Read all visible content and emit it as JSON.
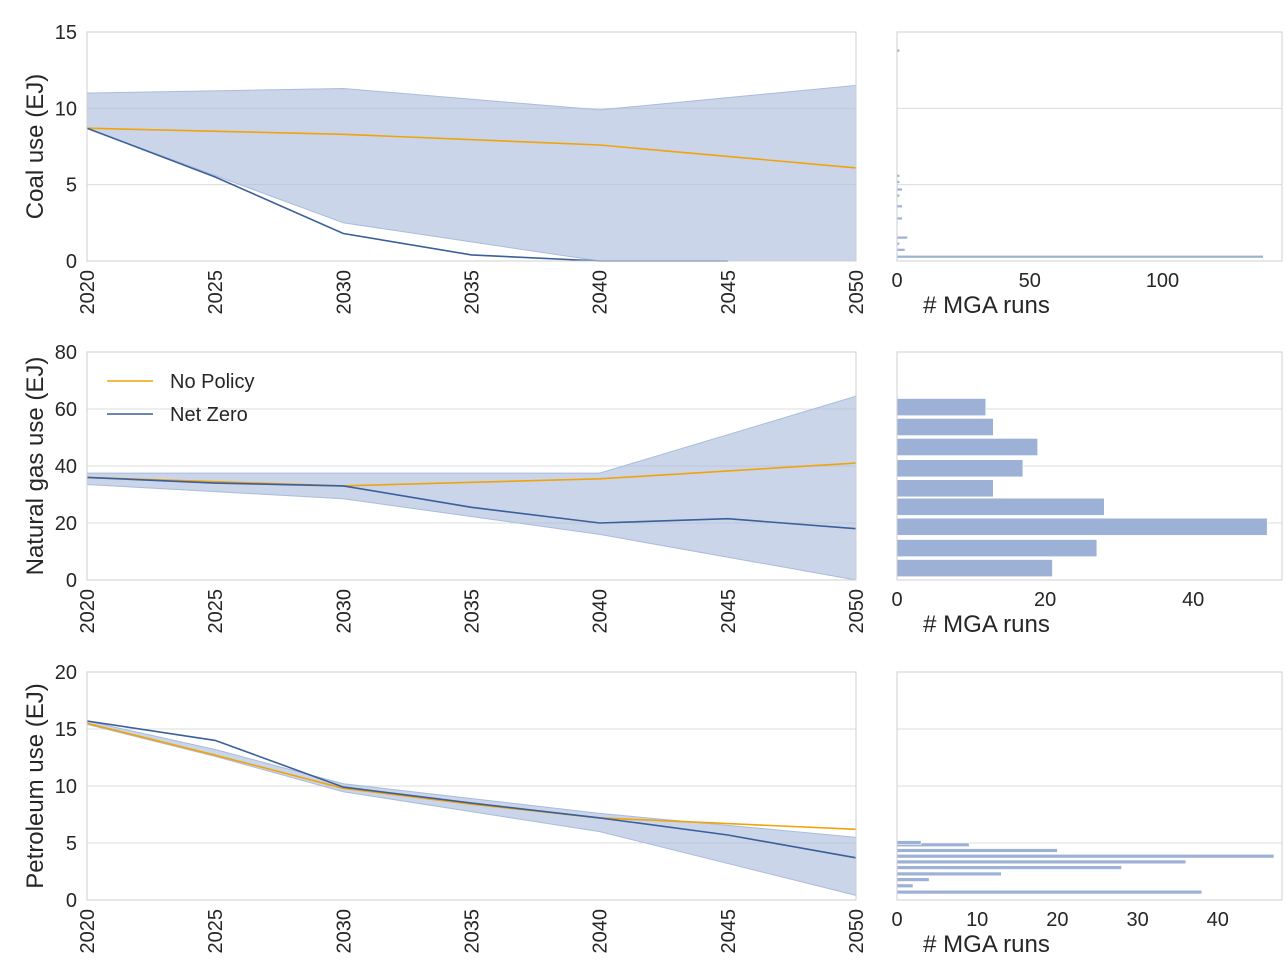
{
  "legend": {
    "placement": "upper-left of natural gas panel",
    "entries": [
      {
        "label": "No Policy",
        "color": "#f0a30a"
      },
      {
        "label": "Net Zero",
        "color": "#3a5f9a"
      }
    ]
  },
  "colors": {
    "no_policy": "#f0a30a",
    "net_zero": "#3a5f9a",
    "band": "#a9bcdb",
    "hist": "#9db1d6",
    "grid": "#dcdcdc",
    "frame": "#cfcfcf"
  },
  "chart_data": [
    {
      "type": "line",
      "id": "coal-lines",
      "ylabel": "Coal use (EJ)",
      "xlabel": "",
      "xlim": [
        2020,
        2050
      ],
      "ylim": [
        0,
        15
      ],
      "xticks": [
        "2020",
        "2025",
        "2030",
        "2035",
        "2040",
        "2045",
        "2050"
      ],
      "yticks": [
        "0",
        "5",
        "10",
        "15"
      ],
      "grid": true,
      "band": {
        "x": [
          2020,
          2030,
          2040,
          2050
        ],
        "upper": [
          11.0,
          11.3,
          9.9,
          11.5
        ],
        "lower": [
          8.7,
          2.5,
          0.0,
          0.0
        ]
      },
      "series": [
        {
          "name": "No Policy",
          "x": [
            2020,
            2030,
            2040,
            2050
          ],
          "y": [
            8.7,
            8.3,
            7.6,
            6.1
          ]
        },
        {
          "name": "Net Zero",
          "x": [
            2020,
            2025,
            2030,
            2035,
            2040,
            2045
          ],
          "y": [
            8.7,
            5.5,
            1.8,
            0.4,
            0.0,
            0.0
          ]
        }
      ]
    },
    {
      "type": "bar",
      "id": "coal-hist",
      "orientation": "horizontal",
      "xlabel": "# MGA runs",
      "ylabel": "",
      "xlim": [
        0,
        145
      ],
      "ylim": [
        0,
        15
      ],
      "xticks": [
        0,
        50,
        100
      ],
      "xtick_labels": [
        "0",
        "50",
        "100"
      ],
      "bin_centers": [
        13.75,
        5.55,
        5.15,
        4.65,
        4.25,
        3.55,
        2.75,
        1.5,
        1.1,
        0.7,
        0.25
      ],
      "bin_height": 0.25,
      "values": [
        1,
        1,
        1,
        2,
        1,
        2,
        2,
        4,
        1,
        3,
        138
      ]
    },
    {
      "type": "line",
      "id": "gas-lines",
      "ylabel": "Natural gas use (EJ)",
      "xlabel": "",
      "xlim": [
        2020,
        2050
      ],
      "ylim": [
        0,
        80
      ],
      "xticks": [
        "2020",
        "2025",
        "2030",
        "2035",
        "2040",
        "2045",
        "2050"
      ],
      "yticks": [
        "0",
        "20",
        "40",
        "60",
        "80"
      ],
      "grid": true,
      "band": {
        "x": [
          2020,
          2025,
          2030,
          2040,
          2050
        ],
        "upper": [
          37.5,
          37.5,
          37.5,
          37.5,
          64.5
        ],
        "lower": [
          33.5,
          31.0,
          28.5,
          16.0,
          0.0
        ]
      },
      "series": [
        {
          "name": "No Policy",
          "x": [
            2020,
            2025,
            2030,
            2040,
            2050
          ],
          "y": [
            36.0,
            34.5,
            33.0,
            35.5,
            41.0
          ]
        },
        {
          "name": "Net Zero",
          "x": [
            2020,
            2025,
            2030,
            2035,
            2040,
            2045,
            2050
          ],
          "y": [
            36.0,
            34.0,
            33.0,
            25.5,
            20.0,
            21.5,
            18.0
          ]
        }
      ]
    },
    {
      "type": "bar",
      "id": "gas-hist",
      "orientation": "horizontal",
      "xlabel": "# MGA runs",
      "ylabel": "",
      "xlim": [
        0,
        52
      ],
      "ylim": [
        0,
        80
      ],
      "xticks": [
        0,
        20,
        40
      ],
      "xtick_labels": [
        "0",
        "20",
        "40"
      ],
      "bin_centers": [
        4,
        11,
        18.5,
        25.5,
        32,
        39,
        46.5,
        53.5,
        60.5
      ],
      "bin_height": 6.4,
      "values": [
        21,
        27,
        50,
        28,
        13,
        17,
        19,
        13,
        12
      ]
    },
    {
      "type": "line",
      "id": "petroleum-lines",
      "ylabel": "Petroleum use (EJ)",
      "xlabel": "",
      "xlim": [
        2020,
        2050
      ],
      "ylim": [
        0,
        20
      ],
      "xticks": [
        "2020",
        "2025",
        "2030",
        "2035",
        "2040",
        "2045",
        "2050"
      ],
      "yticks": [
        "0",
        "5",
        "10",
        "15",
        "20"
      ],
      "grid": true,
      "band": {
        "x": [
          2020,
          2025,
          2030,
          2040,
          2050
        ],
        "upper": [
          15.7,
          13.2,
          10.2,
          7.6,
          5.5
        ],
        "lower": [
          15.4,
          12.6,
          9.5,
          6.0,
          0.4
        ]
      },
      "series": [
        {
          "name": "No Policy",
          "x": [
            2020,
            2025,
            2030,
            2035,
            2040,
            2045,
            2050
          ],
          "y": [
            15.5,
            12.7,
            9.8,
            8.4,
            7.2,
            6.7,
            6.2
          ]
        },
        {
          "name": "Net Zero",
          "x": [
            2020,
            2025,
            2030,
            2035,
            2040,
            2045,
            2050
          ],
          "y": [
            15.7,
            14.0,
            9.9,
            8.5,
            7.2,
            5.7,
            3.7
          ]
        }
      ]
    },
    {
      "type": "bar",
      "id": "petroleum-hist",
      "orientation": "horizontal",
      "xlabel": "# MGA runs",
      "ylabel": "",
      "xlim": [
        0,
        48
      ],
      "ylim": [
        0,
        20
      ],
      "xticks": [
        0,
        10,
        20,
        30,
        40
      ],
      "xtick_labels": [
        "0",
        "10",
        "20",
        "30",
        "40"
      ],
      "bin_centers": [
        0.65,
        1.2,
        1.75,
        2.25,
        2.8,
        3.3,
        3.8,
        4.3,
        4.8,
        5.0
      ],
      "bin_height": 0.42,
      "values": [
        38,
        2,
        4,
        13,
        28,
        36,
        47,
        20,
        9,
        3
      ]
    }
  ]
}
